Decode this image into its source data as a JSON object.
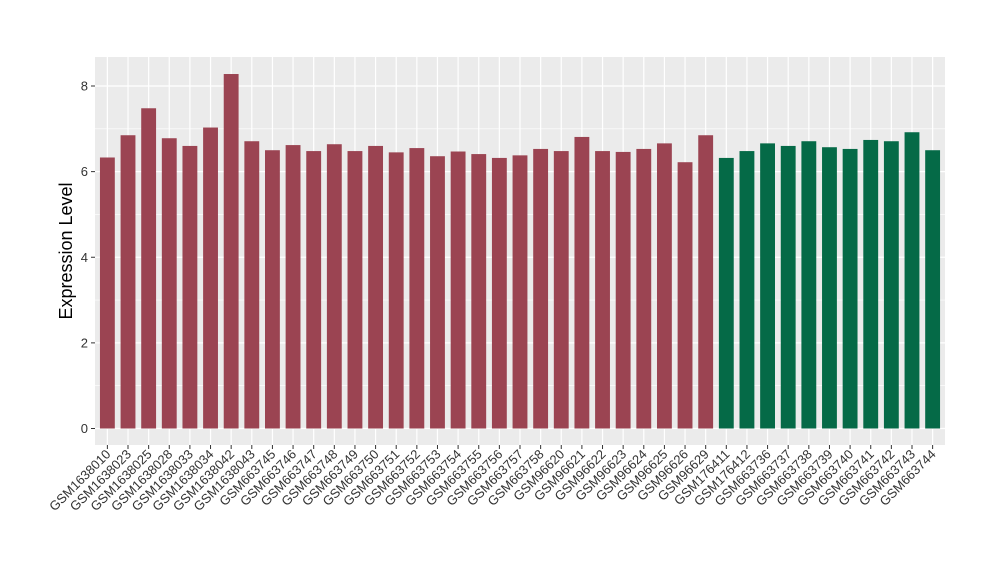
{
  "chart_data": {
    "type": "bar",
    "ylabel": "Expression Level",
    "xlabel": "",
    "ylim": [
      0,
      8.6
    ],
    "y_ticks": [
      0,
      2,
      4,
      6,
      8
    ],
    "grid": true,
    "colors": {
      "group1": "#9B4452",
      "group2": "#056A47",
      "panel": "#EBEBEB",
      "gridline": "#FFFFFF"
    },
    "categories": [
      "GSM1638010",
      "GSM1638023",
      "GSM1638025",
      "GSM1638028",
      "GSM1638033",
      "GSM1638034",
      "GSM1638042",
      "GSM1638043",
      "GSM663745",
      "GSM663746",
      "GSM663747",
      "GSM663748",
      "GSM663749",
      "GSM663750",
      "GSM663751",
      "GSM663752",
      "GSM663753",
      "GSM663754",
      "GSM663755",
      "GSM663756",
      "GSM663757",
      "GSM663758",
      "GSM96620",
      "GSM96621",
      "GSM96622",
      "GSM96623",
      "GSM96624",
      "GSM96625",
      "GSM96626",
      "GSM96629",
      "GSM176411",
      "GSM176412",
      "GSM663736",
      "GSM663737",
      "GSM663738",
      "GSM663739",
      "GSM663740",
      "GSM663741",
      "GSM663742",
      "GSM663743",
      "GSM663744"
    ],
    "values": [
      6.33,
      6.85,
      7.48,
      6.78,
      6.6,
      7.03,
      8.28,
      6.71,
      6.5,
      6.62,
      6.48,
      6.64,
      6.48,
      6.6,
      6.45,
      6.55,
      6.36,
      6.47,
      6.41,
      6.32,
      6.38,
      6.53,
      6.48,
      6.81,
      6.48,
      6.46,
      6.53,
      6.66,
      6.22,
      6.85,
      6.32,
      6.48,
      6.66,
      6.6,
      6.71,
      6.57,
      6.53,
      6.74,
      6.71,
      6.92,
      6.5
    ],
    "group": [
      1,
      1,
      1,
      1,
      1,
      1,
      1,
      1,
      1,
      1,
      1,
      1,
      1,
      1,
      1,
      1,
      1,
      1,
      1,
      1,
      1,
      1,
      1,
      1,
      1,
      1,
      1,
      1,
      1,
      1,
      2,
      2,
      2,
      2,
      2,
      2,
      2,
      2,
      2,
      2,
      2
    ]
  }
}
